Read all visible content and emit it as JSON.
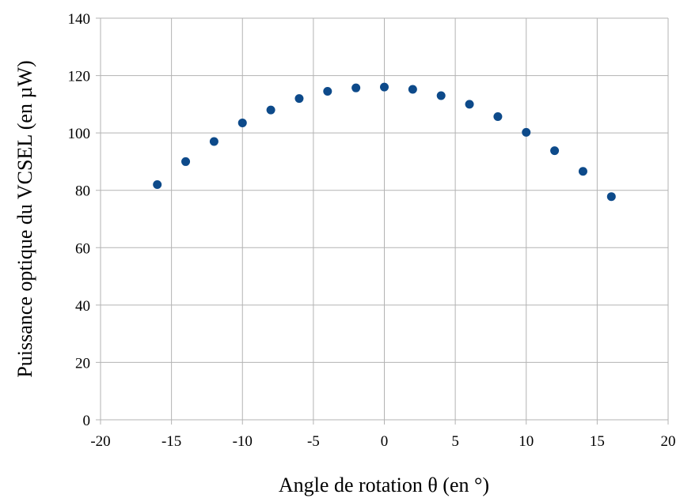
{
  "chart_data": {
    "type": "scatter",
    "title": "",
    "xlabel": "Angle de rotation θ (en °)",
    "ylabel": "Puissance optique du VCSEL (en µW)",
    "xlim": [
      -20,
      20
    ],
    "ylim": [
      0,
      140
    ],
    "xticks": [
      -20,
      -15,
      -10,
      -5,
      0,
      5,
      10,
      15,
      20
    ],
    "yticks": [
      0,
      20,
      40,
      60,
      80,
      100,
      120,
      140
    ],
    "grid": true,
    "legend": "none",
    "marker_color": "#0d4a8a",
    "grid_color": "#b3b3b3",
    "series": [
      {
        "x": [
          -16,
          -14,
          -12,
          -10,
          -8,
          -6,
          -4,
          -2,
          0,
          2,
          4,
          6,
          8,
          10,
          12,
          14,
          16
        ],
        "y": [
          82,
          90,
          97,
          103.5,
          108,
          112,
          114.5,
          115.7,
          116,
          115.2,
          113,
          110,
          105.7,
          100.2,
          93.8,
          86.6,
          77.8
        ]
      }
    ]
  }
}
